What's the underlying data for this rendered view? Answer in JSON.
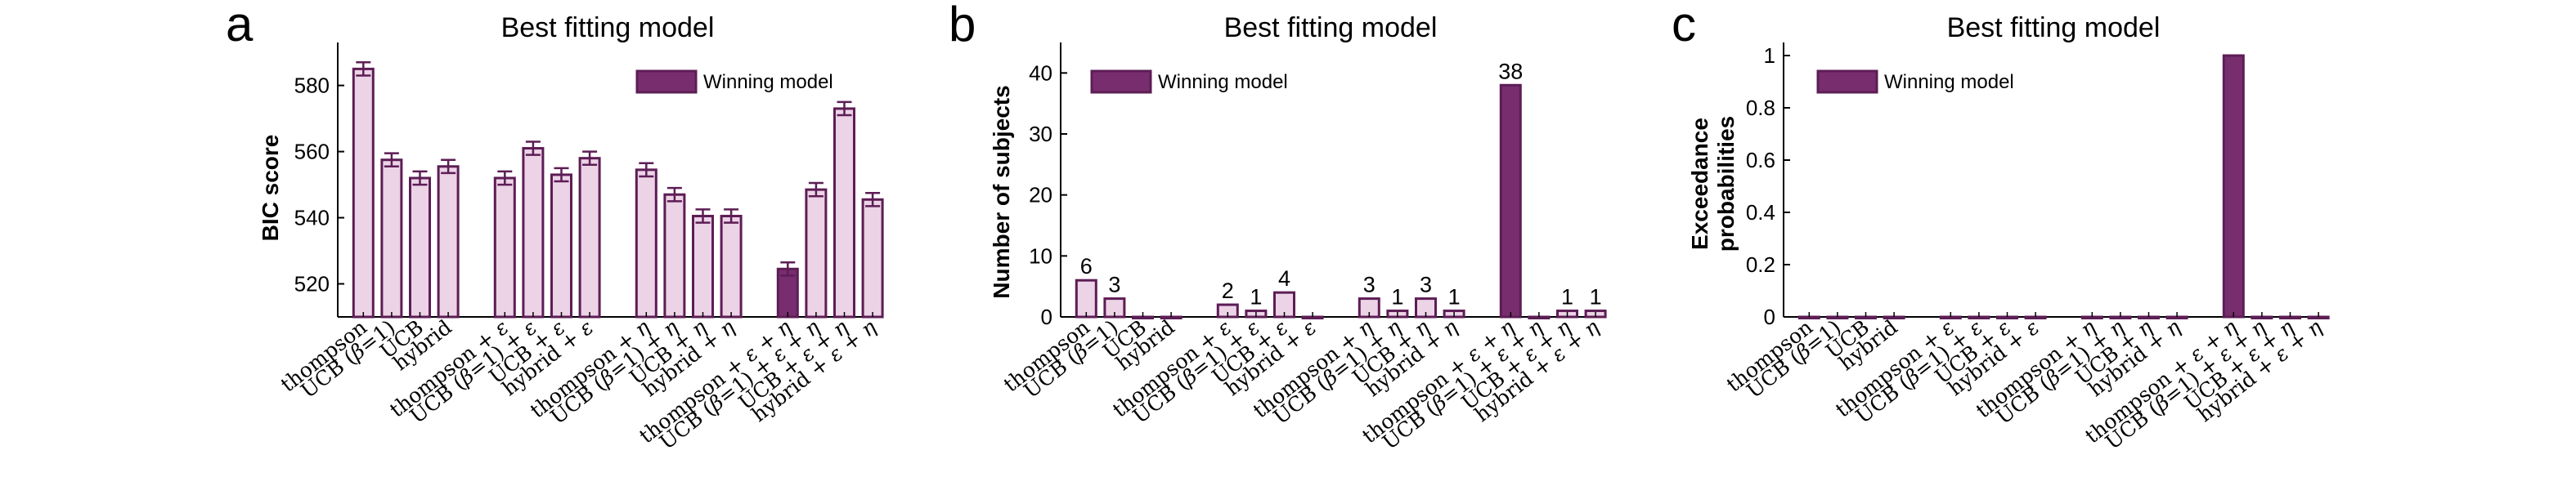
{
  "colors": {
    "light": "#ecd3e6",
    "dark": "#782e6e",
    "edge": "#5d1d55"
  },
  "chart_data": [
    {
      "panel": "a",
      "type": "bar",
      "title": "Best fitting model",
      "ylabel": "BIC score",
      "ylim": [
        510,
        593
      ],
      "yticks": [
        520,
        540,
        560,
        580
      ],
      "legend": "Winning model",
      "legend_position": "top-right",
      "highlight_index": 12,
      "error_bars": true,
      "categories": [
        "thompson",
        "UCB (β=1)",
        "UCB",
        "hybrid",
        "thompson + ε",
        "UCB (β=1) + ε",
        "UCB + ε",
        "hybrid + ε",
        "thompson + η",
        "UCB (β=1) + η",
        "UCB + η",
        "hybrid + η",
        "thompson + ε + η",
        "UCB (β=1) + ε + η",
        "UCB + ε + η",
        "hybrid + ε + η"
      ],
      "values": [
        585,
        557.5,
        552,
        555.5,
        552,
        561,
        553,
        558,
        554.5,
        547,
        540.5,
        540.5,
        524.5,
        548.5,
        573,
        545.5
      ],
      "errors": [
        2,
        2,
        2,
        2,
        2,
        2,
        2,
        2,
        2,
        2,
        2,
        2,
        2,
        2,
        2,
        2
      ]
    },
    {
      "panel": "b",
      "type": "bar",
      "title": "Best fitting model",
      "ylabel": "Number of subjects",
      "ylim": [
        0,
        45
      ],
      "yticks": [
        0,
        10,
        20,
        30,
        40
      ],
      "legend": "Winning model",
      "legend_position": "top-left",
      "highlight_index": 12,
      "categories": [
        "thompson",
        "UCB (β=1)",
        "UCB",
        "hybrid",
        "thompson + ε",
        "UCB (β=1) + ε",
        "UCB + ε",
        "hybrid + ε",
        "thompson + η",
        "UCB (β=1) + η",
        "UCB + η",
        "hybrid + η",
        "thompson + ε + η",
        "UCB (β=1) + ε + η",
        "UCB + ε + η",
        "hybrid + ε + η"
      ],
      "values": [
        6,
        3,
        0,
        0,
        2,
        1,
        4,
        0,
        3,
        1,
        3,
        1,
        38,
        0,
        1,
        1
      ],
      "data_labels": [
        "6",
        "3",
        "",
        "",
        "2",
        "1",
        "4",
        "",
        "3",
        "1",
        "3",
        "1",
        "38",
        "",
        "1",
        "1"
      ]
    },
    {
      "panel": "c",
      "type": "bar",
      "title": "Best fitting model",
      "ylabel": [
        "Exceedance",
        "probabilities"
      ],
      "ylim": [
        0,
        1.05
      ],
      "yticks": [
        0,
        0.2,
        0.4,
        0.6,
        0.8,
        1
      ],
      "legend": "Winning model",
      "legend_position": "top-left",
      "highlight_index": 12,
      "categories": [
        "thompson",
        "UCB (β=1)",
        "UCB",
        "hybrid",
        "thompson + ε",
        "UCB (β=1) + ε",
        "UCB + ε",
        "hybrid + ε",
        "thompson + η",
        "UCB (β=1) + η",
        "UCB + η",
        "hybrid + η",
        "thompson + ε + η",
        "UCB (β=1) + ε + η",
        "UCB + ε + η",
        "hybrid + ε + η"
      ],
      "values": [
        0,
        0,
        0,
        0,
        0,
        0,
        0,
        0,
        0,
        0,
        0,
        0,
        1,
        0,
        0,
        0
      ]
    }
  ]
}
